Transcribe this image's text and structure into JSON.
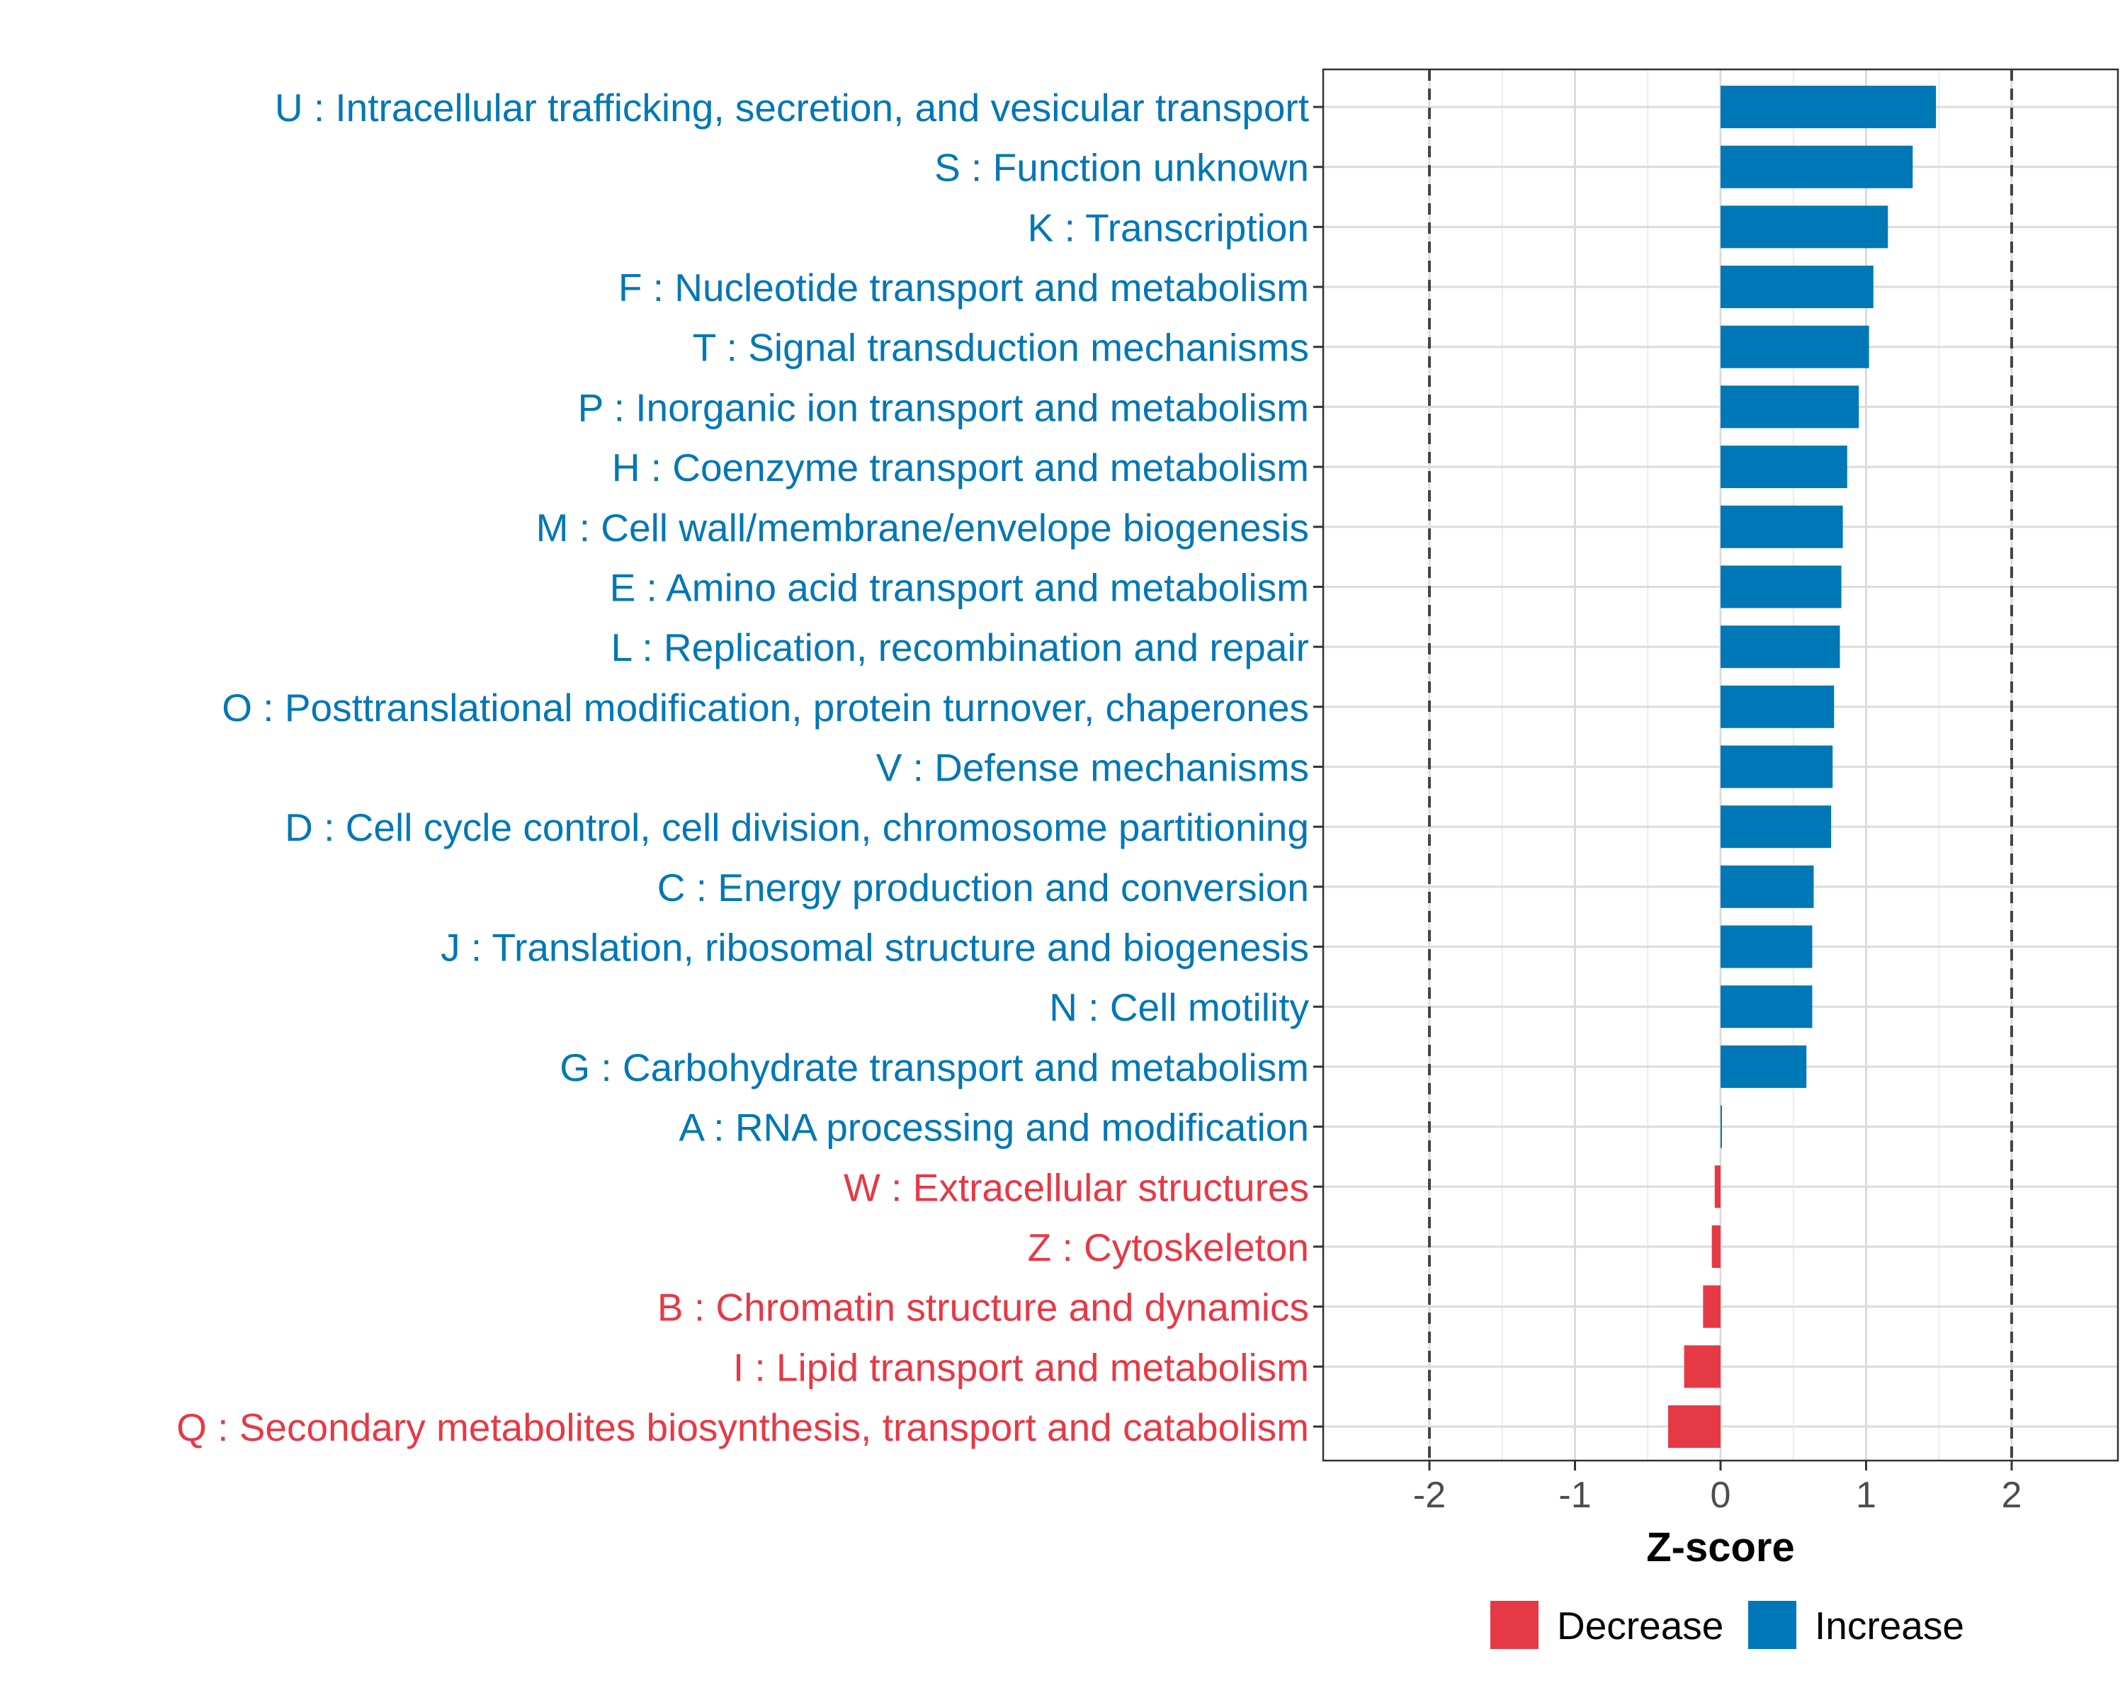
{
  "chart_data": {
    "type": "bar",
    "orientation": "horizontal",
    "title": "",
    "xlabel": "Z-score",
    "ylabel": "",
    "xlim": [
      -2.73,
      2.73
    ],
    "x_ticks": [
      "-2",
      "-1",
      "0",
      "1",
      "2"
    ],
    "threshold_lines": [
      -2,
      2
    ],
    "grid": true,
    "legend_position": "bottom",
    "legend": [
      {
        "label": "Decrease",
        "color": "#E63946"
      },
      {
        "label": "Increase",
        "color": "#0077B6"
      }
    ],
    "categories": [
      "U : Intracellular trafficking, secretion, and vesicular transport",
      "S : Function unknown",
      "K : Transcription",
      "F : Nucleotide transport and metabolism",
      "T : Signal transduction mechanisms",
      "P : Inorganic ion transport and metabolism",
      "H : Coenzyme transport and metabolism",
      "M : Cell wall/membrane/envelope biogenesis",
      "E : Amino acid transport and metabolism",
      "L : Replication, recombination and repair",
      "O : Posttranslational modification, protein turnover, chaperones",
      "V : Defense mechanisms",
      "D : Cell cycle control, cell division, chromosome partitioning",
      "C : Energy production and conversion",
      "J : Translation, ribosomal structure and biogenesis",
      "N : Cell motility",
      "G : Carbohydrate transport and metabolism",
      "A : RNA processing and modification",
      "W : Extracellular structures",
      "Z : Cytoskeleton",
      "B : Chromatin structure and dynamics",
      "I : Lipid transport and metabolism",
      "Q : Secondary metabolites biosynthesis, transport and catabolism"
    ],
    "values": [
      1.48,
      1.32,
      1.15,
      1.05,
      1.02,
      0.95,
      0.87,
      0.84,
      0.83,
      0.82,
      0.78,
      0.77,
      0.76,
      0.64,
      0.63,
      0.63,
      0.59,
      0.005,
      -0.04,
      -0.06,
      -0.12,
      -0.25,
      -0.36
    ],
    "groups": [
      "Increase",
      "Increase",
      "Increase",
      "Increase",
      "Increase",
      "Increase",
      "Increase",
      "Increase",
      "Increase",
      "Increase",
      "Increase",
      "Increase",
      "Increase",
      "Increase",
      "Increase",
      "Increase",
      "Increase",
      "Increase",
      "Decrease",
      "Decrease",
      "Decrease",
      "Decrease",
      "Decrease"
    ]
  }
}
